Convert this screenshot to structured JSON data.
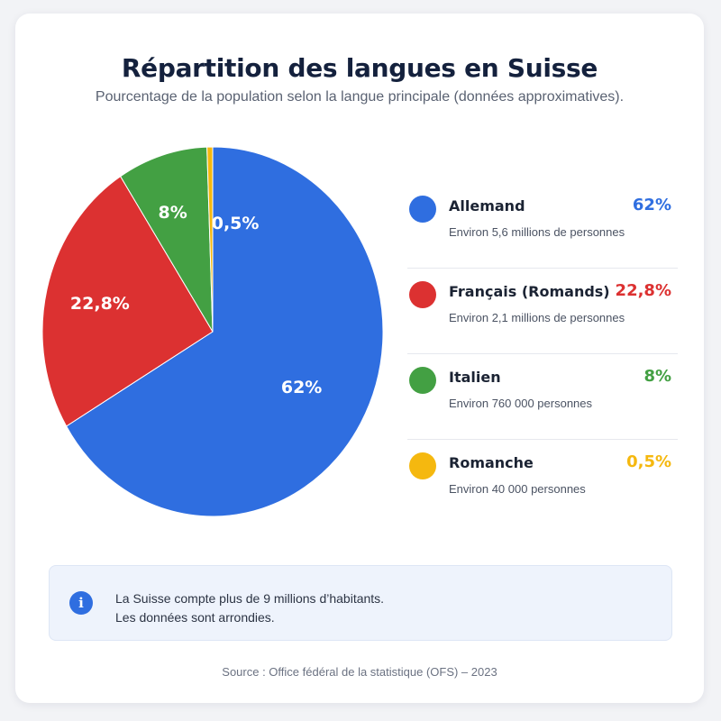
{
  "title": "Répartition des langues en Suisse",
  "subtitle": "Pourcentage de la population selon la langue principale (données approximatives).",
  "chart_data": {
    "type": "pie",
    "title": "Répartition des langues en Suisse",
    "subtitle": "Pourcentage de la population selon la langue principale (données approximatives).",
    "unit": "%",
    "legend_position": "right",
    "slices": [
      {
        "name": "Allemand",
        "value": 62,
        "label": "62%",
        "color": "#2f6ee0",
        "description": "Environ 5,6 millions de personnes"
      },
      {
        "name": "Français (Romands)",
        "value": 22.8,
        "label": "22,8%",
        "color": "#dc3131",
        "description": "Environ 2,1 millions de personnes"
      },
      {
        "name": "Italien",
        "value": 8,
        "label": "8%",
        "color": "#43a043",
        "description": "Environ 760 000 personnes"
      },
      {
        "name": "Romanche",
        "value": 0.5,
        "label": "0,5%",
        "color": "#f5b80f",
        "description": "Environ 40 000 personnes"
      }
    ]
  },
  "info": {
    "icon": "info-icon",
    "line1": "La Suisse compte plus de 9 millions d’habitants.",
    "line2": "Les données sont arrondies."
  },
  "source": "Source : Office fédéral de la statistique (OFS) – 2023"
}
